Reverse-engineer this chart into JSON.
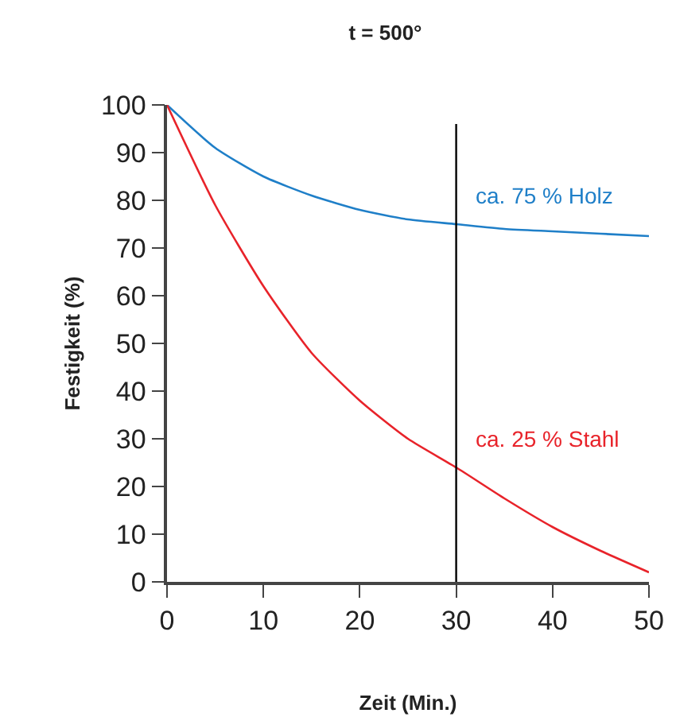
{
  "chart_data": {
    "type": "line",
    "title": "t = 500°",
    "xlabel": "Zeit (Min.)",
    "ylabel": "Festigkeit (%)",
    "x": [
      0,
      5,
      10,
      15,
      20,
      25,
      30,
      35,
      40,
      45,
      50
    ],
    "series": [
      {
        "name": "ca. 75 % Holz",
        "color": "#1f7fc8",
        "values": [
          100,
          91,
          85,
          81,
          78,
          76,
          75,
          74,
          73.5,
          73,
          72.5
        ]
      },
      {
        "name": "ca. 25 % Stahl",
        "color": "#e8232a",
        "values": [
          100,
          79,
          62,
          48,
          38,
          30,
          24,
          17.5,
          11.5,
          6.5,
          2
        ]
      }
    ],
    "xlim": [
      0,
      50
    ],
    "xticks": [
      0,
      10,
      20,
      30,
      40,
      50
    ],
    "ylim": [
      0,
      100
    ],
    "yticks": [
      0,
      10,
      20,
      30,
      40,
      50,
      60,
      70,
      80,
      90,
      100
    ],
    "ref_lines": [
      {
        "axis": "x",
        "value": 30,
        "color": "#000000"
      }
    ],
    "grid": false,
    "legend": false,
    "marker": "none",
    "line_style": "solid"
  }
}
